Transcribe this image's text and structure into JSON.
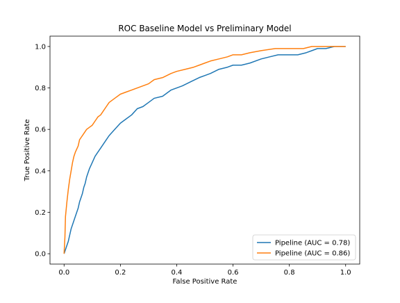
{
  "chart_data": {
    "type": "line",
    "title": "ROC Baseline Model vs Preliminary Model",
    "xlabel": "False Positive Rate",
    "ylabel": "True Positive Rate",
    "xlim": [
      -0.05,
      1.05
    ],
    "ylim": [
      -0.05,
      1.05
    ],
    "xticks": [
      0.0,
      0.2,
      0.4,
      0.6,
      0.8,
      1.0
    ],
    "yticks": [
      0.0,
      0.2,
      0.4,
      0.6,
      0.8,
      1.0
    ],
    "xtick_labels": [
      "0.0",
      "0.2",
      "0.4",
      "0.6",
      "0.8",
      "1.0"
    ],
    "ytick_labels": [
      "0.0",
      "0.2",
      "0.4",
      "0.6",
      "0.8",
      "1.0"
    ],
    "grid": false,
    "legend_position": "lower-right",
    "series": [
      {
        "name": "Pipeline (AUC = 0.78)",
        "color": "#1f77b4",
        "x": [
          0.0,
          0.005,
          0.01,
          0.015,
          0.02,
          0.025,
          0.03,
          0.04,
          0.05,
          0.055,
          0.06,
          0.065,
          0.07,
          0.075,
          0.08,
          0.085,
          0.09,
          0.1,
          0.11,
          0.12,
          0.13,
          0.14,
          0.15,
          0.16,
          0.18,
          0.2,
          0.22,
          0.24,
          0.26,
          0.28,
          0.3,
          0.32,
          0.35,
          0.38,
          0.4,
          0.42,
          0.45,
          0.48,
          0.5,
          0.52,
          0.55,
          0.58,
          0.6,
          0.63,
          0.66,
          0.7,
          0.73,
          0.76,
          0.8,
          0.83,
          0.86,
          0.88,
          0.9,
          0.93,
          0.96,
          1.0
        ],
        "y": [
          0.0,
          0.02,
          0.04,
          0.06,
          0.09,
          0.12,
          0.14,
          0.18,
          0.22,
          0.25,
          0.27,
          0.29,
          0.32,
          0.34,
          0.37,
          0.39,
          0.41,
          0.44,
          0.47,
          0.49,
          0.51,
          0.53,
          0.55,
          0.57,
          0.6,
          0.63,
          0.65,
          0.67,
          0.7,
          0.71,
          0.73,
          0.75,
          0.76,
          0.79,
          0.8,
          0.81,
          0.83,
          0.85,
          0.86,
          0.87,
          0.89,
          0.9,
          0.91,
          0.91,
          0.92,
          0.94,
          0.95,
          0.96,
          0.96,
          0.96,
          0.97,
          0.98,
          0.99,
          0.99,
          1.0,
          1.0
        ]
      },
      {
        "name": "Pipeline (AUC = 0.86)",
        "color": "#ff7f0e",
        "x": [
          0.0,
          0.003,
          0.005,
          0.01,
          0.015,
          0.02,
          0.025,
          0.03,
          0.035,
          0.04,
          0.05,
          0.055,
          0.06,
          0.07,
          0.08,
          0.09,
          0.1,
          0.11,
          0.12,
          0.13,
          0.14,
          0.15,
          0.16,
          0.18,
          0.2,
          0.22,
          0.24,
          0.26,
          0.28,
          0.3,
          0.32,
          0.35,
          0.38,
          0.4,
          0.43,
          0.46,
          0.48,
          0.5,
          0.52,
          0.55,
          0.58,
          0.6,
          0.63,
          0.66,
          0.7,
          0.75,
          0.8,
          0.85,
          0.88,
          0.9,
          0.95,
          1.0
        ],
        "y": [
          0.0,
          0.08,
          0.18,
          0.25,
          0.31,
          0.36,
          0.4,
          0.44,
          0.47,
          0.49,
          0.52,
          0.55,
          0.56,
          0.58,
          0.6,
          0.61,
          0.62,
          0.64,
          0.66,
          0.67,
          0.69,
          0.71,
          0.73,
          0.75,
          0.77,
          0.78,
          0.79,
          0.8,
          0.81,
          0.82,
          0.84,
          0.85,
          0.87,
          0.88,
          0.89,
          0.9,
          0.91,
          0.92,
          0.93,
          0.94,
          0.95,
          0.96,
          0.96,
          0.97,
          0.98,
          0.99,
          0.99,
          0.99,
          1.0,
          1.0,
          1.0,
          1.0
        ]
      }
    ]
  }
}
